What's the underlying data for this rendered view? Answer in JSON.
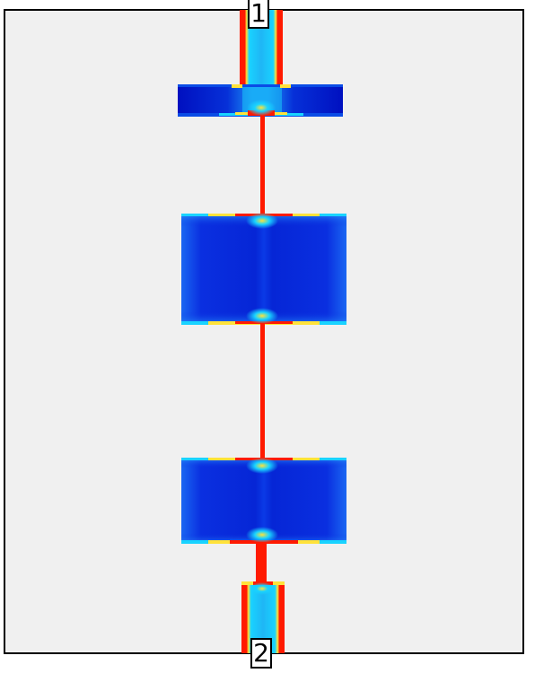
{
  "ports": [
    {
      "id": "port-1",
      "label": "1"
    },
    {
      "id": "port-2",
      "label": "2"
    }
  ],
  "colors": {
    "background": "#ffffff",
    "substrate": "#f0f0f0",
    "outline": "#000000",
    "field_low": "#0010c8",
    "field_mid": "#1a6bf0",
    "field_cyan": "#19d3ff",
    "field_yellow": "#ffe23a",
    "field_high": "#ff1a00"
  }
}
